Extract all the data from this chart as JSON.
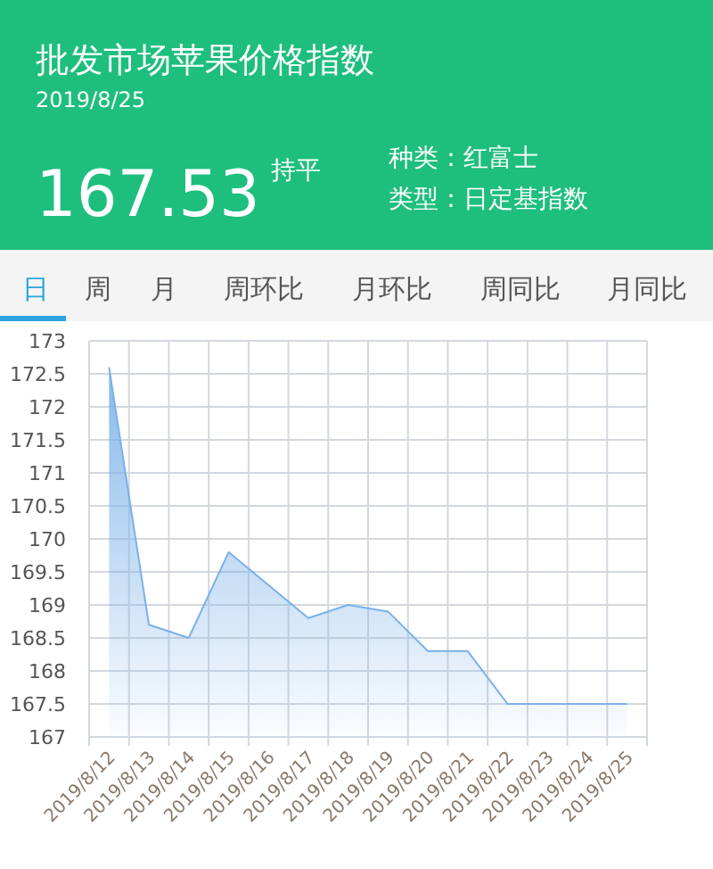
{
  "chart_data": {
    "type": "area",
    "title": "批发市场苹果价格指数",
    "subtitle": "2019/8/25",
    "annotations": [
      "167.53",
      "持平",
      "种类：红富士",
      "类型：日定基指数",
      "日",
      "周",
      "月",
      "周环比",
      "月环比",
      "周同比",
      "月同比"
    ],
    "categories": [
      "2019/8/12",
      "2019/8/13",
      "2019/8/14",
      "2019/8/15",
      "2019/8/16",
      "2019/8/17",
      "2019/8/18",
      "2019/8/19",
      "2019/8/20",
      "2019/8/21",
      "2019/8/22",
      "2019/8/23",
      "2019/8/24",
      "2019/8/25"
    ],
    "values": [
      172.6,
      168.7,
      168.5,
      169.8,
      169.3,
      168.8,
      169.0,
      168.9,
      168.3,
      168.3,
      167.5,
      167.5,
      167.5,
      167.5
    ],
    "color": "#7ab1e8",
    "ylim": [
      167,
      173
    ],
    "yticks": [
      167,
      167.5,
      168,
      168.5,
      169,
      169.5,
      170,
      170.5,
      171,
      171.5,
      172,
      172.5,
      173
    ],
    "grid": true
  }
}
